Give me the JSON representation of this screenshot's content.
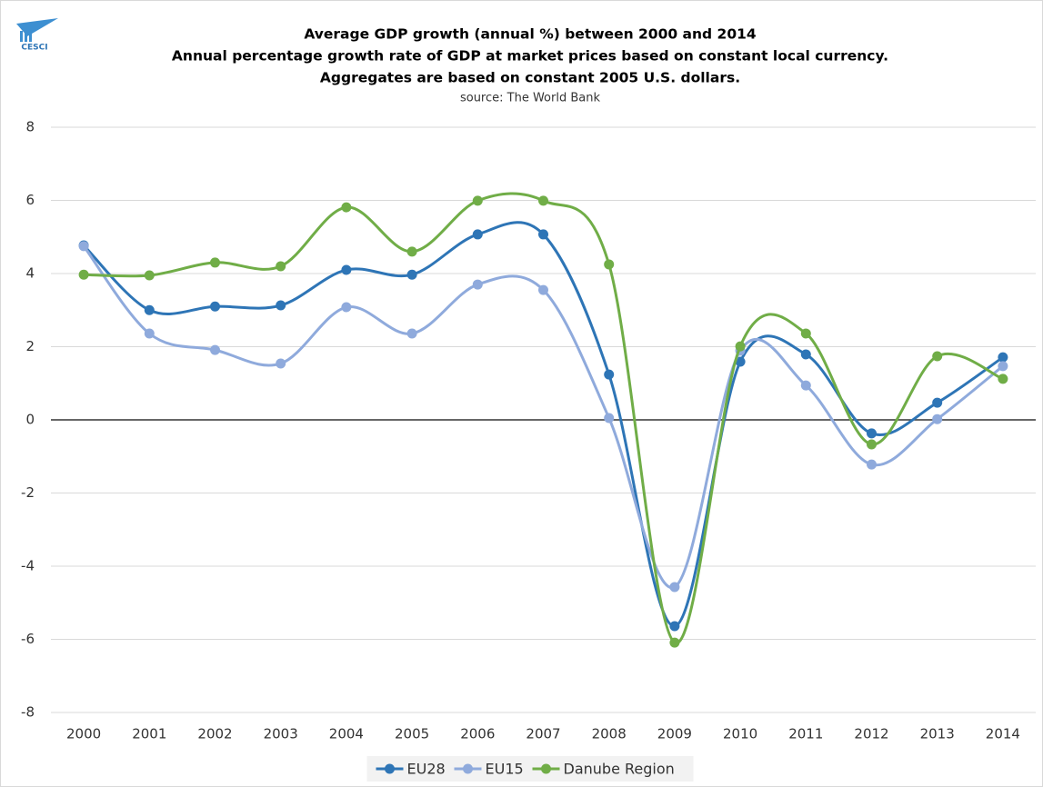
{
  "logo": "CESCI",
  "chart_data": {
    "type": "line",
    "title": [
      "Average GDP growth (annual %) between 2000 and 2014",
      "Annual percentage growth rate of GDP at market prices based on constant local currency.",
      "Aggregates are based on constant 2005 U.S. dollars."
    ],
    "subtitle": "source: The World Bank",
    "categories": [
      "2000",
      "2001",
      "2002",
      "2003",
      "2004",
      "2005",
      "2006",
      "2007",
      "2008",
      "2009",
      "2010",
      "2011",
      "2012",
      "2013",
      "2014"
    ],
    "series": [
      {
        "name": "EU28",
        "color": "#2e75b6",
        "values": [
          4.77,
          3.0,
          3.1,
          3.13,
          4.1,
          3.97,
          5.07,
          5.07,
          1.24,
          -5.64,
          1.59,
          1.79,
          -0.37,
          0.47,
          1.71
        ]
      },
      {
        "name": "EU15",
        "color": "#8faadc",
        "values": [
          4.75,
          2.36,
          1.91,
          1.54,
          3.08,
          2.36,
          3.7,
          3.55,
          0.05,
          -4.57,
          1.89,
          0.94,
          -1.22,
          0.02,
          1.47
        ]
      },
      {
        "name": "Danube Region",
        "color": "#70ad47",
        "values": [
          3.97,
          3.95,
          4.3,
          4.2,
          5.81,
          4.6,
          5.99,
          5.99,
          4.25,
          -6.09,
          2.01,
          2.36,
          -0.67,
          1.74,
          1.12
        ]
      }
    ],
    "ylim": [
      -8,
      8
    ],
    "yticks": [
      -8,
      -6,
      -4,
      -2,
      0,
      2,
      4,
      6,
      8
    ],
    "grid": true,
    "smooth": true,
    "legend": "bottom"
  }
}
